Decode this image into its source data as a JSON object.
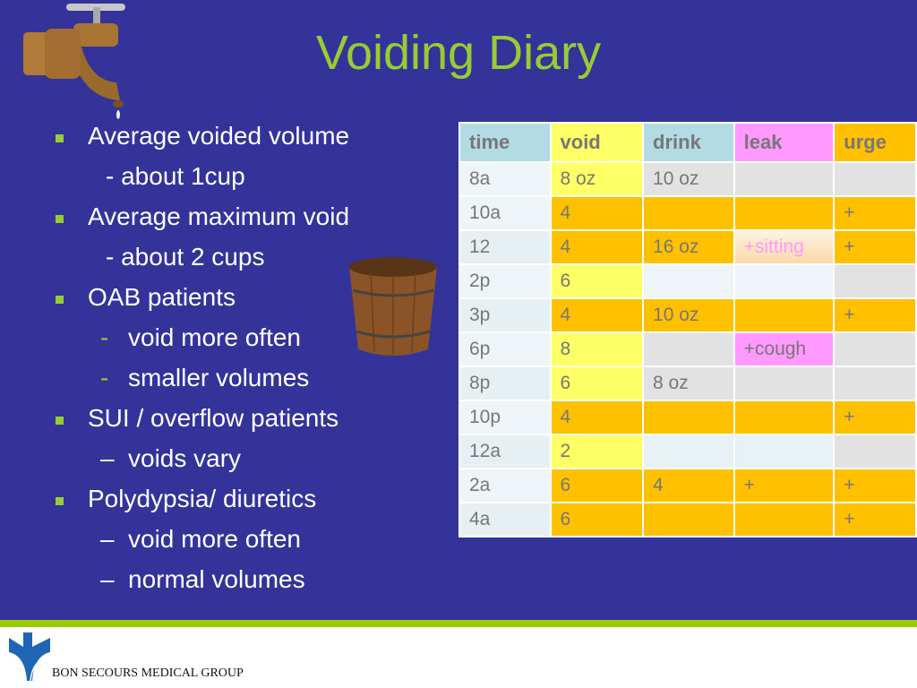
{
  "title": "Voiding Diary",
  "bullets": [
    {
      "text": "Average voided volume",
      "level": 1
    },
    {
      "text": "- about 1cup",
      "level": 2,
      "marker": ""
    },
    {
      "text": "Average maximum void",
      "level": 1
    },
    {
      "text": "- about 2 cups",
      "level": 2,
      "marker": ""
    },
    {
      "text": "OAB patients",
      "level": 1
    },
    {
      "text": "void more often",
      "level": 2,
      "marker": "-"
    },
    {
      "text": "smaller volumes",
      "level": 2,
      "marker": "-"
    },
    {
      "text": "SUI / overflow patients",
      "level": 1
    },
    {
      "text": " voids vary",
      "level": 2,
      "marker": "–"
    },
    {
      "text": "Polydypsia/ diuretics",
      "level": 1
    },
    {
      "text": "void more often",
      "level": 2,
      "marker": "–"
    },
    {
      "text": "normal volumes",
      "level": 2,
      "marker": "–"
    }
  ],
  "table": {
    "headers": [
      "time",
      "void",
      "drink",
      "leak",
      "urge"
    ],
    "header_colors": [
      "#b3dbe3",
      "#ffff66",
      "#b3dbe3",
      "#ff99ff",
      "#ffc000"
    ],
    "rows": [
      {
        "cells": [
          "8a",
          "8 oz",
          "10 oz",
          "",
          ""
        ],
        "colors": [
          "#eef5f8",
          "#ffff66",
          "#e2e2e2",
          "#e2e2e2",
          "#e2e2e2"
        ]
      },
      {
        "cells": [
          "10a",
          "4",
          "",
          "",
          "+"
        ],
        "colors": [
          "#eef5f8",
          "#ffc000",
          "#ffc000",
          "#ffc000",
          "#ffc000"
        ]
      },
      {
        "cells": [
          "12",
          "4",
          "16 oz",
          "+sitting",
          "+"
        ],
        "colors": [
          "#e6f0f3",
          "#ffc000",
          "#ffc000",
          "#fde3c4",
          "#ffc000"
        ]
      },
      {
        "cells": [
          "2p",
          "6",
          "",
          "",
          ""
        ],
        "colors": [
          "#eef5f8",
          "#ffff66",
          "#eef5f8",
          "#eef5f8",
          "#e2e2e2"
        ]
      },
      {
        "cells": [
          "3p",
          "4",
          "10 oz",
          "",
          "+"
        ],
        "colors": [
          "#e6f0f3",
          "#ffc000",
          "#ffc000",
          "#ffc000",
          "#ffc000"
        ]
      },
      {
        "cells": [
          "6p",
          "8",
          "",
          "+cough",
          ""
        ],
        "colors": [
          "#eef5f8",
          "#ffff66",
          "#e2e2e2",
          "#ff99ff",
          "#e2e2e2"
        ]
      },
      {
        "cells": [
          "8p",
          "6",
          "8 oz",
          "",
          ""
        ],
        "colors": [
          "#e6f0f3",
          "#ffff66",
          "#e2e2e2",
          "#e2e2e2",
          "#e2e2e2"
        ]
      },
      {
        "cells": [
          "10p",
          "4",
          "",
          "",
          "+"
        ],
        "colors": [
          "#eef5f8",
          "#ffc000",
          "#ffc000",
          "#ffc000",
          "#ffc000"
        ]
      },
      {
        "cells": [
          "12a",
          "2",
          "",
          "",
          ""
        ],
        "colors": [
          "#e6f0f3",
          "#ffff66",
          "#e8f1f5",
          "#e8f1f5",
          "#e2e2e2"
        ]
      },
      {
        "cells": [
          "2a",
          "6",
          "4",
          "+",
          "+"
        ],
        "colors": [
          "#eef5f8",
          "#ffc000",
          "#ffc000",
          "#ffc000",
          "#ffc000"
        ]
      },
      {
        "cells": [
          "4a",
          "6",
          "",
          "",
          "+"
        ],
        "colors": [
          "#e6f0f3",
          "#ffc000",
          "#ffc000",
          "#ffc000",
          "#ffc000"
        ]
      }
    ],
    "special_text_color": {
      "+sitting": "#ff99ff"
    }
  },
  "footer": {
    "logo_text": "BON SECOURS MEDICAL GROUP"
  },
  "colors": {
    "background": "#333399",
    "title": "#99cc33",
    "accent_bar": "#99cc00"
  }
}
